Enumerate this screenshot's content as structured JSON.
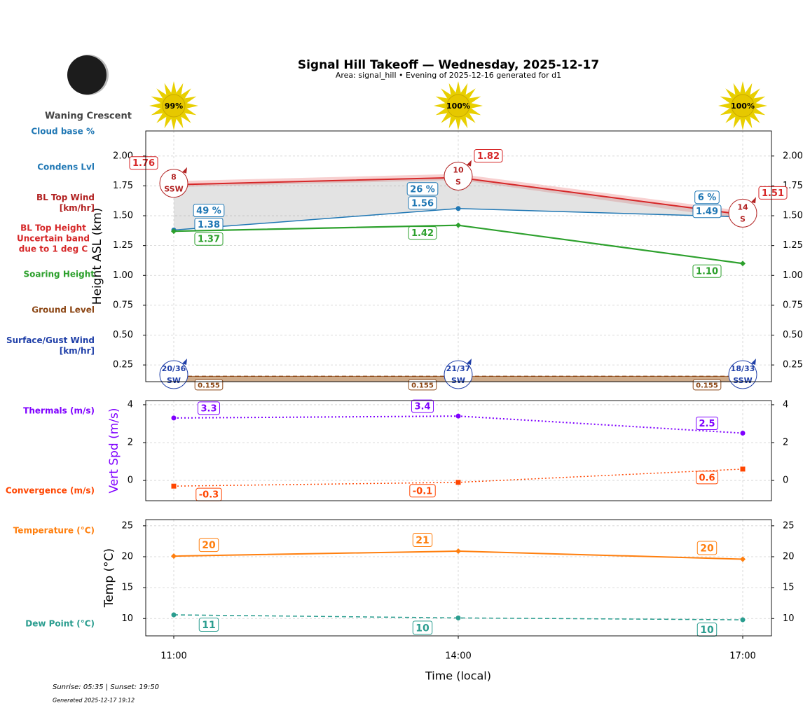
{
  "title": "Signal Hill Takeoff — Wednesday, 2025-12-17",
  "subtitle": "Area: signal_hill • Evening of 2025-12-16 generated for d1",
  "moon_phase": "Waning Crescent",
  "sun": {
    "values": [
      99,
      100,
      100
    ],
    "value_labels": [
      "99%",
      "100%",
      "100%"
    ]
  },
  "footer": {
    "sun_times": "Sunrise: 05:35 | Sunset: 19:50",
    "generated": "Generated 2025-12-17 19:12"
  },
  "chart_data": [
    {
      "type": "line",
      "ylabel": "Height ASL (km)",
      "ylim": [
        0.11,
        2.21
      ],
      "yticks": [
        0.25,
        {
          "value": 0.5,
          "label": "0.50"
        },
        0.75,
        {
          "value": 1,
          "label": "1.00"
        },
        1.25,
        {
          "value": 1.5,
          "label": "1.50"
        },
        1.75,
        {
          "value": 2,
          "label": "2.00"
        }
      ],
      "grid": true,
      "row_labels": [
        {
          "text": "Cloud base %",
          "color": "#1f77b4"
        },
        {
          "text": "Condens Lvl",
          "color": "#1f77b4"
        },
        {
          "text": "BL Top Wind [km/hr]",
          "color": "#b22222"
        },
        {
          "text": "BL Top Height Uncertain band due to 1 deg C",
          "color": "#d62728"
        },
        {
          "text": "Soaring Height",
          "color": "#2ca02c"
        },
        {
          "text": "Ground Level",
          "color": "#8b4513"
        },
        {
          "text": "Surface/Gust Wind [km/hr]",
          "color": "#1f3fa8"
        }
      ],
      "series": [
        {
          "color": "#d62728",
          "values": [
            1.76,
            1.82,
            1.51
          ],
          "band_lower": [
            1.74,
            1.8,
            1.47
          ],
          "band_upper": [
            1.79,
            1.85,
            1.54
          ],
          "band_color": "#f4b0b0",
          "marker": "none",
          "width": 2
        },
        {
          "color": "#1f77b4",
          "values": [
            1.38,
            1.56,
            1.49
          ],
          "cloud_base": [
            49,
            26,
            6
          ],
          "cloud_base_labels": [
            "49 %",
            "26 %",
            "6 %"
          ],
          "marker": "circle",
          "width": 1.5
        },
        {
          "color": "#2ca02c",
          "values": [
            1.37,
            1.42,
            1.1
          ],
          "value_labels": [
            "1.37",
            "1.42",
            "1.10"
          ],
          "marker": "diamond",
          "width": 2.2
        },
        {
          "color": "#8b4513",
          "values": [
            0.155,
            0.155,
            0.155
          ],
          "fill": "#c9a27e",
          "dash": "dashed",
          "marker": "none",
          "width": 1.3
        }
      ],
      "bl_wind": {
        "speeds": [
          8,
          10,
          14
        ],
        "directions": [
          "SSW",
          "S",
          "S"
        ],
        "color": "#b22222"
      },
      "surface_wind": {
        "labels": [
          "20/36",
          "21/37",
          "18/33"
        ],
        "directions": [
          "SW",
          "SW",
          "SSW"
        ],
        "color": "#1f3fa8"
      }
    },
    {
      "type": "line",
      "ylabel": "Vert Spd (m/s)",
      "ylabel_color": "#7f00ff",
      "ylim": [
        -1.07,
        4.22
      ],
      "yticks": [
        0,
        2,
        4
      ],
      "grid": true,
      "row_labels": [
        {
          "text": "Thermals (m/s)",
          "color": "#7f00ff"
        },
        {
          "text": "Convergence (m/s)",
          "color": "#ff4500"
        }
      ],
      "series": [
        {
          "color": "#7f00ff",
          "values": [
            3.3,
            3.4,
            2.5
          ],
          "marker": "circle",
          "dash": "dotted",
          "width": 2
        },
        {
          "color": "#ff4500",
          "values": [
            -0.3,
            -0.1,
            0.6
          ],
          "marker": "square",
          "dash": "dotted",
          "width": 1.5
        }
      ]
    },
    {
      "type": "line",
      "ylabel": "Temp (°C)",
      "xlabel": "Time (local)",
      "categories": [
        "11:00",
        "14:00",
        "17:00"
      ],
      "ylim": [
        7.2,
        26.0
      ],
      "yticks": [
        10,
        15,
        20,
        25
      ],
      "grid": true,
      "row_labels": [
        {
          "text": "Temperature (°C)",
          "color": "#ff7f0e"
        },
        {
          "text": "Dew Point (°C)",
          "color": "#2a9d8f"
        }
      ],
      "series": [
        {
          "color": "#ff7f0e",
          "values": [
            20.1,
            20.9,
            19.6
          ],
          "value_labels": [
            "20",
            "21",
            "20"
          ],
          "marker": "diamond",
          "width": 2
        },
        {
          "color": "#2a9d8f",
          "values": [
            10.6,
            10.1,
            9.8
          ],
          "value_labels": [
            "11",
            "10",
            "10"
          ],
          "marker": "circle",
          "dash": "dashed",
          "width": 1.5
        }
      ]
    }
  ]
}
